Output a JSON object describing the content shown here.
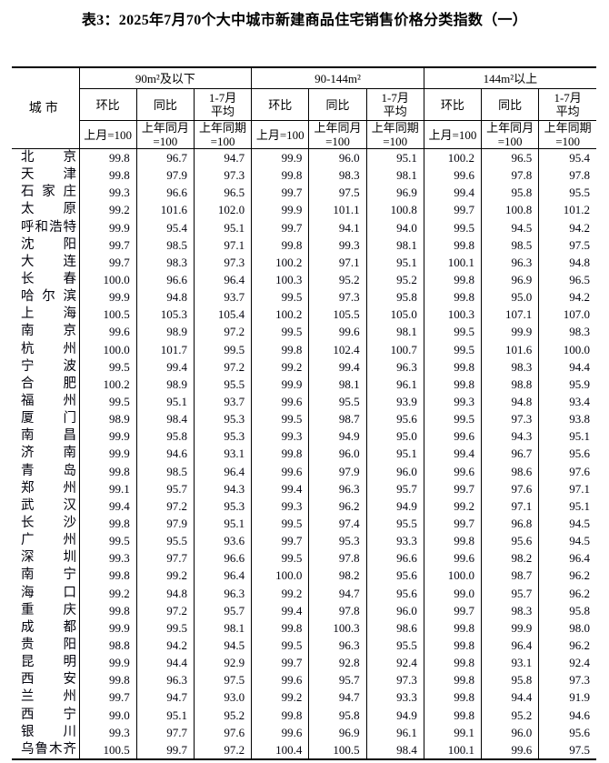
{
  "title": "表3：2025年7月70个大中城市新建商品住宅销售价格分类指数（一）",
  "table": {
    "city_header": "城市",
    "groups": [
      {
        "label": "90m²及以下",
        "cols": [
          {
            "name": "环比",
            "base": "上月=100"
          },
          {
            "name": "同比",
            "base": "上年同月\n=100"
          },
          {
            "name": "1-7月\n平均",
            "base": "上年同期\n=100"
          }
        ]
      },
      {
        "label": "90-144m²",
        "cols": [
          {
            "name": "环比",
            "base": "上月=100"
          },
          {
            "name": "同比",
            "base": "上年同月\n=100"
          },
          {
            "name": "1-7月\n平均",
            "base": "上年同期\n=100"
          }
        ]
      },
      {
        "label": "144m²以上",
        "cols": [
          {
            "name": "环比",
            "base": "上月=100"
          },
          {
            "name": "同比",
            "base": "上年同月\n=100"
          },
          {
            "name": "1-7月\n平均",
            "base": "上年同期\n=100"
          }
        ]
      }
    ],
    "rows": [
      {
        "city": "北京",
        "values": [
          "99.8",
          "96.7",
          "94.7",
          "99.9",
          "96.0",
          "95.1",
          "100.2",
          "96.5",
          "95.4"
        ]
      },
      {
        "city": "天津",
        "values": [
          "99.8",
          "97.9",
          "97.3",
          "99.8",
          "98.3",
          "98.1",
          "99.6",
          "97.8",
          "97.8"
        ]
      },
      {
        "city": "石家庄",
        "values": [
          "99.3",
          "96.6",
          "96.5",
          "99.7",
          "97.5",
          "96.9",
          "99.4",
          "95.8",
          "95.5"
        ]
      },
      {
        "city": "太原",
        "values": [
          "99.2",
          "101.6",
          "102.0",
          "99.9",
          "101.1",
          "100.8",
          "99.7",
          "100.8",
          "101.2"
        ]
      },
      {
        "city": "呼和浩特",
        "values": [
          "99.9",
          "95.4",
          "95.1",
          "99.7",
          "94.1",
          "94.0",
          "99.5",
          "94.5",
          "94.2"
        ]
      },
      {
        "city": "沈阳",
        "values": [
          "99.7",
          "98.5",
          "97.1",
          "99.8",
          "99.3",
          "98.1",
          "99.8",
          "98.5",
          "97.5"
        ]
      },
      {
        "city": "大连",
        "values": [
          "99.7",
          "98.3",
          "97.3",
          "100.2",
          "97.1",
          "95.1",
          "100.1",
          "96.3",
          "94.8"
        ]
      },
      {
        "city": "长春",
        "values": [
          "100.0",
          "96.6",
          "96.4",
          "100.3",
          "95.2",
          "95.2",
          "99.8",
          "96.9",
          "96.5"
        ]
      },
      {
        "city": "哈尔滨",
        "values": [
          "99.9",
          "94.8",
          "93.7",
          "99.5",
          "97.3",
          "95.8",
          "99.8",
          "95.0",
          "94.2"
        ]
      },
      {
        "city": "上海",
        "values": [
          "100.5",
          "105.3",
          "105.4",
          "100.2",
          "105.5",
          "105.0",
          "100.3",
          "107.1",
          "107.0"
        ]
      },
      {
        "city": "南京",
        "values": [
          "99.6",
          "98.9",
          "97.2",
          "99.5",
          "99.6",
          "98.1",
          "99.5",
          "99.9",
          "98.3"
        ]
      },
      {
        "city": "杭州",
        "values": [
          "100.0",
          "101.7",
          "99.5",
          "99.8",
          "102.4",
          "100.7",
          "99.5",
          "101.6",
          "100.0"
        ]
      },
      {
        "city": "宁波",
        "values": [
          "99.5",
          "99.4",
          "97.2",
          "99.2",
          "99.4",
          "96.3",
          "99.8",
          "98.3",
          "94.4"
        ]
      },
      {
        "city": "合肥",
        "values": [
          "100.2",
          "98.9",
          "95.5",
          "99.9",
          "98.1",
          "96.1",
          "99.8",
          "98.8",
          "95.9"
        ]
      },
      {
        "city": "福州",
        "values": [
          "99.5",
          "95.1",
          "93.7",
          "99.6",
          "95.5",
          "93.9",
          "99.3",
          "94.8",
          "93.4"
        ]
      },
      {
        "city": "厦门",
        "values": [
          "98.9",
          "98.4",
          "95.3",
          "99.5",
          "98.7",
          "95.6",
          "99.5",
          "97.3",
          "93.8"
        ]
      },
      {
        "city": "南昌",
        "values": [
          "99.9",
          "95.8",
          "95.3",
          "99.3",
          "94.9",
          "95.0",
          "99.6",
          "94.3",
          "95.1"
        ]
      },
      {
        "city": "济南",
        "values": [
          "99.9",
          "94.6",
          "93.1",
          "99.8",
          "96.0",
          "95.1",
          "99.4",
          "96.7",
          "95.6"
        ]
      },
      {
        "city": "青岛",
        "values": [
          "99.8",
          "98.5",
          "96.4",
          "99.6",
          "97.9",
          "96.0",
          "99.6",
          "98.6",
          "97.6"
        ]
      },
      {
        "city": "郑州",
        "values": [
          "99.1",
          "95.7",
          "94.3",
          "99.4",
          "96.3",
          "95.7",
          "99.7",
          "97.6",
          "97.1"
        ]
      },
      {
        "city": "武汉",
        "values": [
          "99.4",
          "97.2",
          "95.3",
          "99.3",
          "96.2",
          "94.9",
          "99.2",
          "97.1",
          "95.1"
        ]
      },
      {
        "city": "长沙",
        "values": [
          "99.8",
          "97.9",
          "95.1",
          "99.5",
          "97.4",
          "95.5",
          "99.7",
          "96.8",
          "94.5"
        ]
      },
      {
        "city": "广州",
        "values": [
          "99.5",
          "95.5",
          "93.6",
          "99.7",
          "95.3",
          "93.3",
          "99.8",
          "95.6",
          "94.5"
        ]
      },
      {
        "city": "深圳",
        "values": [
          "99.3",
          "97.7",
          "96.6",
          "99.5",
          "97.8",
          "96.6",
          "99.6",
          "98.2",
          "96.4"
        ]
      },
      {
        "city": "南宁",
        "values": [
          "99.8",
          "99.2",
          "96.4",
          "100.0",
          "98.2",
          "95.6",
          "100.0",
          "98.7",
          "96.2"
        ]
      },
      {
        "city": "海口",
        "values": [
          "99.2",
          "94.8",
          "96.3",
          "99.2",
          "94.7",
          "95.6",
          "99.0",
          "95.7",
          "96.2"
        ]
      },
      {
        "city": "重庆",
        "values": [
          "99.8",
          "97.2",
          "95.7",
          "99.4",
          "97.8",
          "96.0",
          "99.7",
          "98.3",
          "95.8"
        ]
      },
      {
        "city": "成都",
        "values": [
          "99.9",
          "99.5",
          "98.1",
          "99.8",
          "100.3",
          "98.6",
          "99.8",
          "99.9",
          "98.0"
        ]
      },
      {
        "city": "贵阳",
        "values": [
          "98.8",
          "94.2",
          "94.5",
          "99.5",
          "96.3",
          "95.5",
          "99.8",
          "96.4",
          "96.2"
        ]
      },
      {
        "city": "昆明",
        "values": [
          "99.9",
          "94.4",
          "92.9",
          "99.7",
          "92.8",
          "92.4",
          "99.8",
          "93.1",
          "92.4"
        ]
      },
      {
        "city": "西安",
        "values": [
          "99.8",
          "96.3",
          "97.5",
          "99.6",
          "95.7",
          "97.3",
          "99.8",
          "95.8",
          "97.3"
        ]
      },
      {
        "city": "兰州",
        "values": [
          "99.7",
          "94.7",
          "93.0",
          "99.2",
          "94.7",
          "93.3",
          "99.8",
          "94.4",
          "91.9"
        ]
      },
      {
        "city": "西宁",
        "values": [
          "99.0",
          "95.1",
          "95.2",
          "99.8",
          "95.8",
          "94.9",
          "99.8",
          "95.2",
          "94.6"
        ]
      },
      {
        "city": "银川",
        "values": [
          "99.3",
          "97.7",
          "97.6",
          "99.6",
          "96.9",
          "96.1",
          "99.1",
          "96.0",
          "95.6"
        ]
      },
      {
        "city": "乌鲁木齐",
        "values": [
          "100.5",
          "99.7",
          "97.2",
          "100.4",
          "100.5",
          "98.4",
          "100.1",
          "99.6",
          "97.5"
        ]
      }
    ]
  }
}
